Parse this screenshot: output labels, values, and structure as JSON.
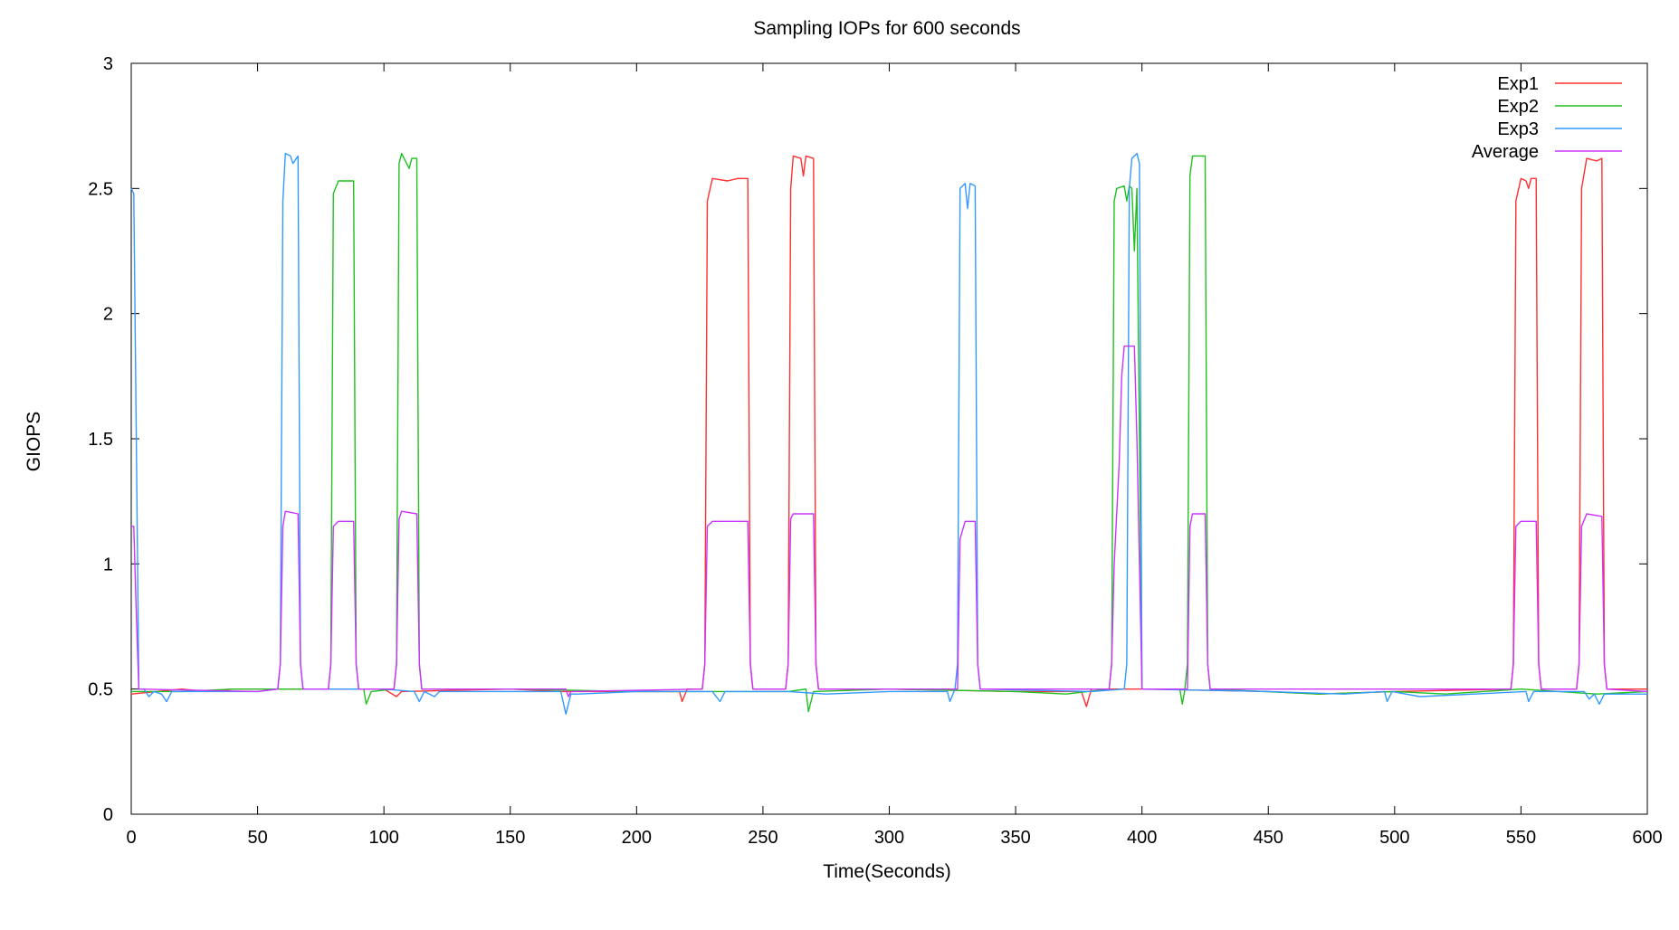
{
  "chart_data": {
    "type": "line",
    "title": "Sampling IOPs for 600 seconds",
    "xlabel": "Time(Seconds)",
    "ylabel": "GIOPS",
    "xlim": [
      0,
      600
    ],
    "ylim": [
      0,
      3
    ],
    "xticks": [
      0,
      50,
      100,
      150,
      200,
      250,
      300,
      350,
      400,
      450,
      500,
      550,
      600
    ],
    "yticks": [
      0,
      0.5,
      1,
      1.5,
      2,
      2.5,
      3
    ],
    "ytick_labels": [
      "0",
      "0.5",
      "1",
      "1.5",
      "2",
      "2.5",
      "3"
    ],
    "grid": false,
    "legend_position": "top-right",
    "series": [
      {
        "name": "Exp1",
        "color": "#ff3030",
        "points": [
          [
            0,
            0.48
          ],
          [
            10,
            0.49
          ],
          [
            20,
            0.5
          ],
          [
            30,
            0.49
          ],
          [
            40,
            0.5
          ],
          [
            57,
            0.5
          ],
          [
            60,
            0.5
          ],
          [
            100,
            0.5
          ],
          [
            105,
            0.47
          ],
          [
            107,
            0.49
          ],
          [
            150,
            0.5
          ],
          [
            170,
            0.49
          ],
          [
            200,
            0.49
          ],
          [
            217,
            0.49
          ],
          [
            218,
            0.45
          ],
          [
            220,
            0.5
          ],
          [
            226,
            0.5
          ],
          [
            227,
            0.6
          ],
          [
            228,
            2.45
          ],
          [
            230,
            2.54
          ],
          [
            236,
            2.53
          ],
          [
            240,
            2.54
          ],
          [
            244,
            2.54
          ],
          [
            245,
            0.6
          ],
          [
            246,
            0.5
          ],
          [
            259,
            0.5
          ],
          [
            260,
            0.6
          ],
          [
            261,
            2.5
          ],
          [
            262,
            2.63
          ],
          [
            265,
            2.62
          ],
          [
            266,
            2.55
          ],
          [
            267,
            2.63
          ],
          [
            270,
            2.62
          ],
          [
            271,
            0.6
          ],
          [
            272,
            0.5
          ],
          [
            300,
            0.5
          ],
          [
            350,
            0.49
          ],
          [
            376,
            0.49
          ],
          [
            378,
            0.43
          ],
          [
            380,
            0.5
          ],
          [
            400,
            0.5
          ],
          [
            450,
            0.49
          ],
          [
            470,
            0.48
          ],
          [
            500,
            0.49
          ],
          [
            546,
            0.5
          ],
          [
            547,
            0.6
          ],
          [
            548,
            2.45
          ],
          [
            550,
            2.54
          ],
          [
            552,
            2.53
          ],
          [
            553,
            2.5
          ],
          [
            554,
            2.54
          ],
          [
            556,
            2.54
          ],
          [
            557,
            0.6
          ],
          [
            558,
            0.5
          ],
          [
            572,
            0.5
          ],
          [
            573,
            0.6
          ],
          [
            574,
            2.5
          ],
          [
            576,
            2.62
          ],
          [
            580,
            2.61
          ],
          [
            582,
            2.62
          ],
          [
            583,
            0.6
          ],
          [
            584,
            0.5
          ],
          [
            600,
            0.5
          ]
        ]
      },
      {
        "name": "Exp2",
        "color": "#20c020",
        "points": [
          [
            0,
            0.49
          ],
          [
            20,
            0.49
          ],
          [
            40,
            0.5
          ],
          [
            78,
            0.5
          ],
          [
            79,
            0.6
          ],
          [
            80,
            2.48
          ],
          [
            82,
            2.53
          ],
          [
            88,
            2.53
          ],
          [
            89,
            0.6
          ],
          [
            90,
            0.5
          ],
          [
            92,
            0.5
          ],
          [
            93,
            0.44
          ],
          [
            95,
            0.49
          ],
          [
            104,
            0.5
          ],
          [
            105,
            0.6
          ],
          [
            106,
            2.6
          ],
          [
            107,
            2.64
          ],
          [
            109,
            2.6
          ],
          [
            110,
            2.58
          ],
          [
            111,
            2.62
          ],
          [
            113,
            2.62
          ],
          [
            114,
            0.6
          ],
          [
            115,
            0.5
          ],
          [
            150,
            0.5
          ],
          [
            200,
            0.49
          ],
          [
            230,
            0.49
          ],
          [
            260,
            0.49
          ],
          [
            267,
            0.5
          ],
          [
            268,
            0.41
          ],
          [
            270,
            0.49
          ],
          [
            300,
            0.5
          ],
          [
            350,
            0.49
          ],
          [
            370,
            0.48
          ],
          [
            387,
            0.5
          ],
          [
            388,
            0.6
          ],
          [
            389,
            2.45
          ],
          [
            390,
            2.5
          ],
          [
            393,
            2.51
          ],
          [
            394,
            2.45
          ],
          [
            395,
            2.51
          ],
          [
            396,
            2.5
          ],
          [
            397,
            2.25
          ],
          [
            398,
            2.5
          ],
          [
            399,
            1.5
          ],
          [
            400,
            0.5
          ],
          [
            415,
            0.5
          ],
          [
            416,
            0.44
          ],
          [
            417,
            0.5
          ],
          [
            418,
            0.6
          ],
          [
            419,
            2.55
          ],
          [
            420,
            2.63
          ],
          [
            425,
            2.63
          ],
          [
            426,
            0.6
          ],
          [
            427,
            0.5
          ],
          [
            470,
            0.48
          ],
          [
            500,
            0.49
          ],
          [
            520,
            0.48
          ],
          [
            550,
            0.5
          ],
          [
            580,
            0.48
          ],
          [
            600,
            0.49
          ]
        ]
      },
      {
        "name": "Exp3",
        "color": "#3399ff",
        "points": [
          [
            0,
            2.5
          ],
          [
            1,
            2.48
          ],
          [
            2,
            1.5
          ],
          [
            3,
            0.5
          ],
          [
            5,
            0.5
          ],
          [
            7,
            0.47
          ],
          [
            9,
            0.49
          ],
          [
            12,
            0.48
          ],
          [
            14,
            0.45
          ],
          [
            16,
            0.49
          ],
          [
            30,
            0.49
          ],
          [
            50,
            0.49
          ],
          [
            58,
            0.5
          ],
          [
            59,
            0.6
          ],
          [
            60,
            2.45
          ],
          [
            61,
            2.64
          ],
          [
            63,
            2.63
          ],
          [
            64,
            2.6
          ],
          [
            66,
            2.63
          ],
          [
            67,
            0.6
          ],
          [
            68,
            0.5
          ],
          [
            100,
            0.5
          ],
          [
            112,
            0.49
          ],
          [
            114,
            0.45
          ],
          [
            116,
            0.49
          ],
          [
            120,
            0.47
          ],
          [
            122,
            0.49
          ],
          [
            150,
            0.49
          ],
          [
            170,
            0.49
          ],
          [
            172,
            0.4
          ],
          [
            174,
            0.48
          ],
          [
            177,
            0.48
          ],
          [
            200,
            0.49
          ],
          [
            230,
            0.49
          ],
          [
            233,
            0.45
          ],
          [
            235,
            0.49
          ],
          [
            260,
            0.49
          ],
          [
            275,
            0.48
          ],
          [
            300,
            0.49
          ],
          [
            323,
            0.49
          ],
          [
            324,
            0.45
          ],
          [
            326,
            0.5
          ],
          [
            327,
            0.6
          ],
          [
            328,
            2.5
          ],
          [
            330,
            2.52
          ],
          [
            331,
            2.42
          ],
          [
            332,
            2.52
          ],
          [
            334,
            2.51
          ],
          [
            335,
            0.6
          ],
          [
            336,
            0.5
          ],
          [
            380,
            0.49
          ],
          [
            393,
            0.5
          ],
          [
            394,
            0.6
          ],
          [
            395,
            2.5
          ],
          [
            396,
            2.62
          ],
          [
            398,
            2.64
          ],
          [
            399,
            2.6
          ],
          [
            400,
            0.5
          ],
          [
            450,
            0.49
          ],
          [
            480,
            0.48
          ],
          [
            496,
            0.49
          ],
          [
            497,
            0.45
          ],
          [
            499,
            0.49
          ],
          [
            510,
            0.47
          ],
          [
            552,
            0.49
          ],
          [
            553,
            0.45
          ],
          [
            555,
            0.49
          ],
          [
            575,
            0.49
          ],
          [
            577,
            0.46
          ],
          [
            579,
            0.48
          ],
          [
            581,
            0.44
          ],
          [
            583,
            0.48
          ],
          [
            600,
            0.48
          ]
        ]
      },
      {
        "name": "Average",
        "color": "#cc33ff",
        "points": [
          [
            0,
            1.15
          ],
          [
            1,
            1.15
          ],
          [
            2,
            0.8
          ],
          [
            3,
            0.5
          ],
          [
            50,
            0.49
          ],
          [
            58,
            0.5
          ],
          [
            59,
            0.6
          ],
          [
            60,
            1.15
          ],
          [
            61,
            1.21
          ],
          [
            66,
            1.2
          ],
          [
            67,
            0.6
          ],
          [
            68,
            0.5
          ],
          [
            78,
            0.5
          ],
          [
            79,
            0.6
          ],
          [
            80,
            1.15
          ],
          [
            82,
            1.17
          ],
          [
            88,
            1.17
          ],
          [
            89,
            0.6
          ],
          [
            90,
            0.5
          ],
          [
            104,
            0.5
          ],
          [
            105,
            0.6
          ],
          [
            106,
            1.18
          ],
          [
            107,
            1.21
          ],
          [
            113,
            1.2
          ],
          [
            114,
            0.6
          ],
          [
            115,
            0.5
          ],
          [
            172,
            0.5
          ],
          [
            173,
            0.47
          ],
          [
            174,
            0.49
          ],
          [
            226,
            0.5
          ],
          [
            227,
            0.6
          ],
          [
            228,
            1.15
          ],
          [
            230,
            1.17
          ],
          [
            244,
            1.17
          ],
          [
            245,
            0.6
          ],
          [
            246,
            0.5
          ],
          [
            259,
            0.5
          ],
          [
            260,
            0.6
          ],
          [
            261,
            1.18
          ],
          [
            262,
            1.2
          ],
          [
            270,
            1.2
          ],
          [
            271,
            0.6
          ],
          [
            272,
            0.5
          ],
          [
            327,
            0.5
          ],
          [
            328,
            1.1
          ],
          [
            330,
            1.17
          ],
          [
            334,
            1.17
          ],
          [
            335,
            0.6
          ],
          [
            336,
            0.5
          ],
          [
            387,
            0.5
          ],
          [
            388,
            0.6
          ],
          [
            389,
            1.0
          ],
          [
            391,
            1.4
          ],
          [
            392,
            1.75
          ],
          [
            393,
            1.87
          ],
          [
            397,
            1.87
          ],
          [
            398,
            1.5
          ],
          [
            399,
            1.0
          ],
          [
            400,
            0.5
          ],
          [
            418,
            0.5
          ],
          [
            419,
            1.15
          ],
          [
            420,
            1.2
          ],
          [
            425,
            1.2
          ],
          [
            426,
            0.6
          ],
          [
            427,
            0.5
          ],
          [
            546,
            0.5
          ],
          [
            547,
            0.6
          ],
          [
            548,
            1.15
          ],
          [
            550,
            1.17
          ],
          [
            556,
            1.17
          ],
          [
            557,
            0.6
          ],
          [
            558,
            0.5
          ],
          [
            572,
            0.5
          ],
          [
            573,
            0.6
          ],
          [
            574,
            1.15
          ],
          [
            576,
            1.2
          ],
          [
            582,
            1.19
          ],
          [
            583,
            0.6
          ],
          [
            584,
            0.5
          ],
          [
            600,
            0.49
          ]
        ]
      }
    ]
  }
}
